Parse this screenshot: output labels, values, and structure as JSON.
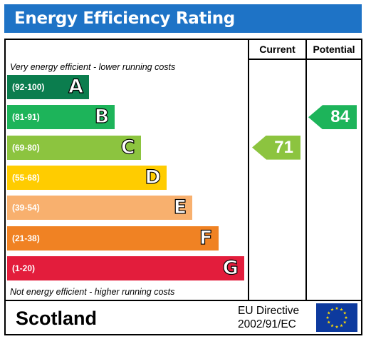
{
  "title": "Energy Efficiency Rating",
  "columns": {
    "current": "Current",
    "potential": "Potential"
  },
  "top_note": "Very energy efficient - lower running costs",
  "bottom_note": "Not energy efficient - higher running costs",
  "bands": [
    {
      "range": "(92-100)",
      "letter": "A",
      "color": "#0b7d4e"
    },
    {
      "range": "(81-91)",
      "letter": "B",
      "color": "#1db45a"
    },
    {
      "range": "(69-80)",
      "letter": "C",
      "color": "#8cc43f"
    },
    {
      "range": "(55-68)",
      "letter": "D",
      "color": "#ffcc00"
    },
    {
      "range": "(39-54)",
      "letter": "E",
      "color": "#f8b06e"
    },
    {
      "range": "(21-38)",
      "letter": "F",
      "color": "#f08223"
    },
    {
      "range": "(1-20)",
      "letter": "G",
      "color": "#e31d3c"
    }
  ],
  "current": {
    "value": "71",
    "band": "C",
    "color": "#8cc43f"
  },
  "potential": {
    "value": "84",
    "band": "B",
    "color": "#1db45a"
  },
  "footer": {
    "country": "Scotland",
    "directive_line1": "EU Directive",
    "directive_line2": "2002/91/EC",
    "flag_color": "#0d3a9e",
    "star_color": "#ffdd00"
  }
}
